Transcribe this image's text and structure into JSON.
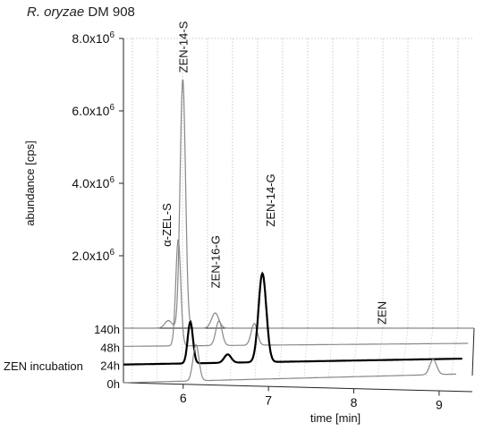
{
  "chart_data": {
    "type": "line",
    "title_italic": "R. oryzae",
    "title_rest": " DM 908",
    "ylabel": "abundance [cps]",
    "xlabel": "time [min]",
    "zlabel": "ZEN incubation",
    "ylim": [
      0,
      8000000
    ],
    "xlim": [
      5.3,
      9.2
    ],
    "y_ticks": [
      {
        "mant": "2.0x10",
        "exp": "6",
        "value": 2000000
      },
      {
        "mant": "4.0x10",
        "exp": "6",
        "value": 4000000
      },
      {
        "mant": "6.0x10",
        "exp": "6",
        "value": 6000000
      },
      {
        "mant": "8.0x10",
        "exp": "6",
        "value": 8000000
      }
    ],
    "x_ticks": [
      {
        "label": "6",
        "value": 6
      },
      {
        "label": "7",
        "value": 7
      },
      {
        "label": "8",
        "value": 8
      },
      {
        "label": "9",
        "value": 9
      }
    ],
    "series": [
      {
        "name": "0h",
        "color": "#888888",
        "width": 1.2,
        "peaks": [
          {
            "x": 6.15,
            "y": 1000000,
            "w": 0.035
          },
          {
            "x": 8.93,
            "y": 420000,
            "w": 0.04
          }
        ]
      },
      {
        "name": "24h",
        "color": "#000000",
        "width": 2.2,
        "peaks": [
          {
            "x": 6.07,
            "y": 1150000,
            "w": 0.03
          },
          {
            "x": 6.5,
            "y": 230000,
            "w": 0.04
          },
          {
            "x": 6.9,
            "y": 2450000,
            "w": 0.045
          }
        ]
      },
      {
        "name": "48h",
        "color": "#888888",
        "width": 1.2,
        "peaks": [
          {
            "x": 5.92,
            "y": 2950000,
            "w": 0.028
          },
          {
            "x": 6.38,
            "y": 680000,
            "w": 0.035
          },
          {
            "x": 6.78,
            "y": 600000,
            "w": 0.035
          }
        ]
      },
      {
        "name": "140h",
        "color": "#888888",
        "width": 1.2,
        "peaks": [
          {
            "x": 5.8,
            "y": 210000,
            "w": 0.04
          },
          {
            "x": 5.96,
            "y": 6900000,
            "w": 0.03
          },
          {
            "x": 6.32,
            "y": 420000,
            "w": 0.04
          }
        ]
      }
    ],
    "annotations": [
      {
        "label": "α-ZEL-S",
        "x": 5.78,
        "y": 2250000
      },
      {
        "label": "ZEN-14-S",
        "x": 5.96,
        "y": 7050000
      },
      {
        "label": "ZEN-16-G",
        "x": 6.32,
        "y": 1100000
      },
      {
        "label": "ZEN-14-G",
        "x": 6.93,
        "y": 2800000
      },
      {
        "label": "ZEN",
        "x": 8.17,
        "y": 100000
      }
    ]
  }
}
